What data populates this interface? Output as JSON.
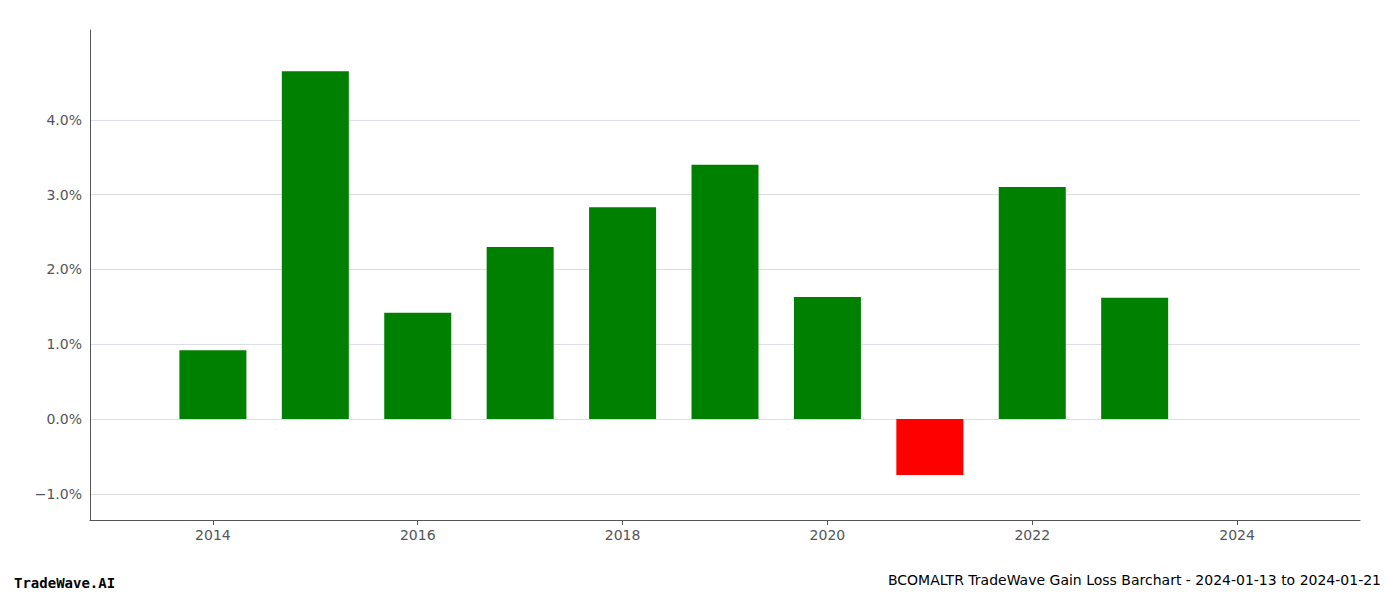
{
  "chart_data": {
    "type": "bar",
    "title": "BCOMALTR TradeWave Gain Loss Barchart - 2024-01-13 to 2024-01-21",
    "annotations": [
      "TradeWave.AI"
    ],
    "x": [
      2014,
      2015,
      2016,
      2017,
      2018,
      2019,
      2020,
      2021,
      2022,
      2023
    ],
    "values": [
      0.0092,
      0.0465,
      0.0142,
      0.023,
      0.0283,
      0.034,
      0.0163,
      -0.0075,
      0.031,
      0.0162
    ],
    "colors": [
      "#008000",
      "#008000",
      "#008000",
      "#008000",
      "#008000",
      "#008000",
      "#008000",
      "#ff0000",
      "#008000",
      "#008000"
    ],
    "xlim": [
      2012.8,
      2025.2
    ],
    "xticks": [
      2014,
      2016,
      2018,
      2020,
      2022,
      2024
    ],
    "ylim": [
      -0.0135,
      0.052
    ],
    "yticks": [
      {
        "value": -0.01,
        "label": "−1.0%"
      },
      {
        "value": 0.0,
        "label": "0.0%"
      },
      {
        "value": 0.01,
        "label": "1.0%"
      },
      {
        "value": 0.02,
        "label": "2.0%"
      },
      {
        "value": 0.03,
        "label": "3.0%"
      },
      {
        "value": 0.04,
        "label": "4.0%"
      }
    ],
    "grid": true
  }
}
